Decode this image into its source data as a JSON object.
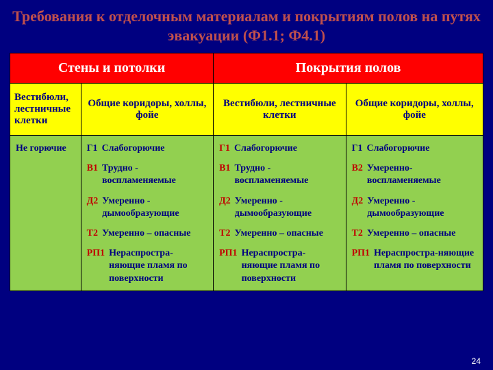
{
  "title": "Требования к отделочным материалам и покрытиям полов на путях эвакуации (Ф1.1; Ф4.1)",
  "header": {
    "group1": "Стены и потолки",
    "group2": "Покрытия полов",
    "sub": [
      "Вестибюли, лестничные клетки",
      "Общие коридоры, холлы, фойе",
      "Вестибюли, лестничные клетки",
      "Общие коридоры, холлы, фойе"
    ]
  },
  "col0": "Не горючие",
  "cells": [
    [
      {
        "code": "Г1",
        "cls": "b",
        "desc": "Слабогорючие"
      },
      {
        "code": "В1",
        "cls": "r",
        "desc": "Трудно - воспламеняемые"
      },
      {
        "code": "Д2",
        "cls": "r",
        "desc": "Умеренно - дымообразующие"
      },
      {
        "code": "Т2",
        "cls": "r",
        "desc": "Умеренно – опасные"
      },
      {
        "code": "РП1",
        "cls": "r",
        "desc": "Нераспростра-няющие пламя по поверхности"
      }
    ],
    [
      {
        "code": "Г1",
        "cls": "r",
        "desc": "Слабогорючие"
      },
      {
        "code": "В1",
        "cls": "r",
        "desc": "Трудно - воспламеняемые"
      },
      {
        "code": "Д2",
        "cls": "r",
        "desc": "Умеренно  - дымообразующие"
      },
      {
        "code": "Т2",
        "cls": "r",
        "desc": "Умеренно – опасные"
      },
      {
        "code": "РП1",
        "cls": "r",
        "desc": "Нераспростра-няющие пламя по поверхности"
      }
    ],
    [
      {
        "code": "Г1",
        "cls": "b",
        "desc": "Слабогорючие"
      },
      {
        "code": "В2",
        "cls": "r",
        "desc": "Умеренно-воспламеняемые"
      },
      {
        "code": "Д2",
        "cls": "r",
        "desc": "Умеренно  - дымообразующие"
      },
      {
        "code": "Т2",
        "cls": "r",
        "desc": "Умеренно – опасные"
      },
      {
        "code": "РП1",
        "cls": "r",
        "desc": "Нераспростра-няющие пламя по поверхности"
      }
    ]
  ],
  "colWidths": [
    "15%",
    "28%",
    "28%",
    "29%"
  ],
  "page": "24",
  "colors": {
    "bg": "#000080",
    "title": "#c0504d",
    "hdrGroup": "#ff0000",
    "hdrSub": "#ffff00",
    "green": "#92d050",
    "codeRed": "#c00000",
    "codeBlue": "#000080"
  }
}
